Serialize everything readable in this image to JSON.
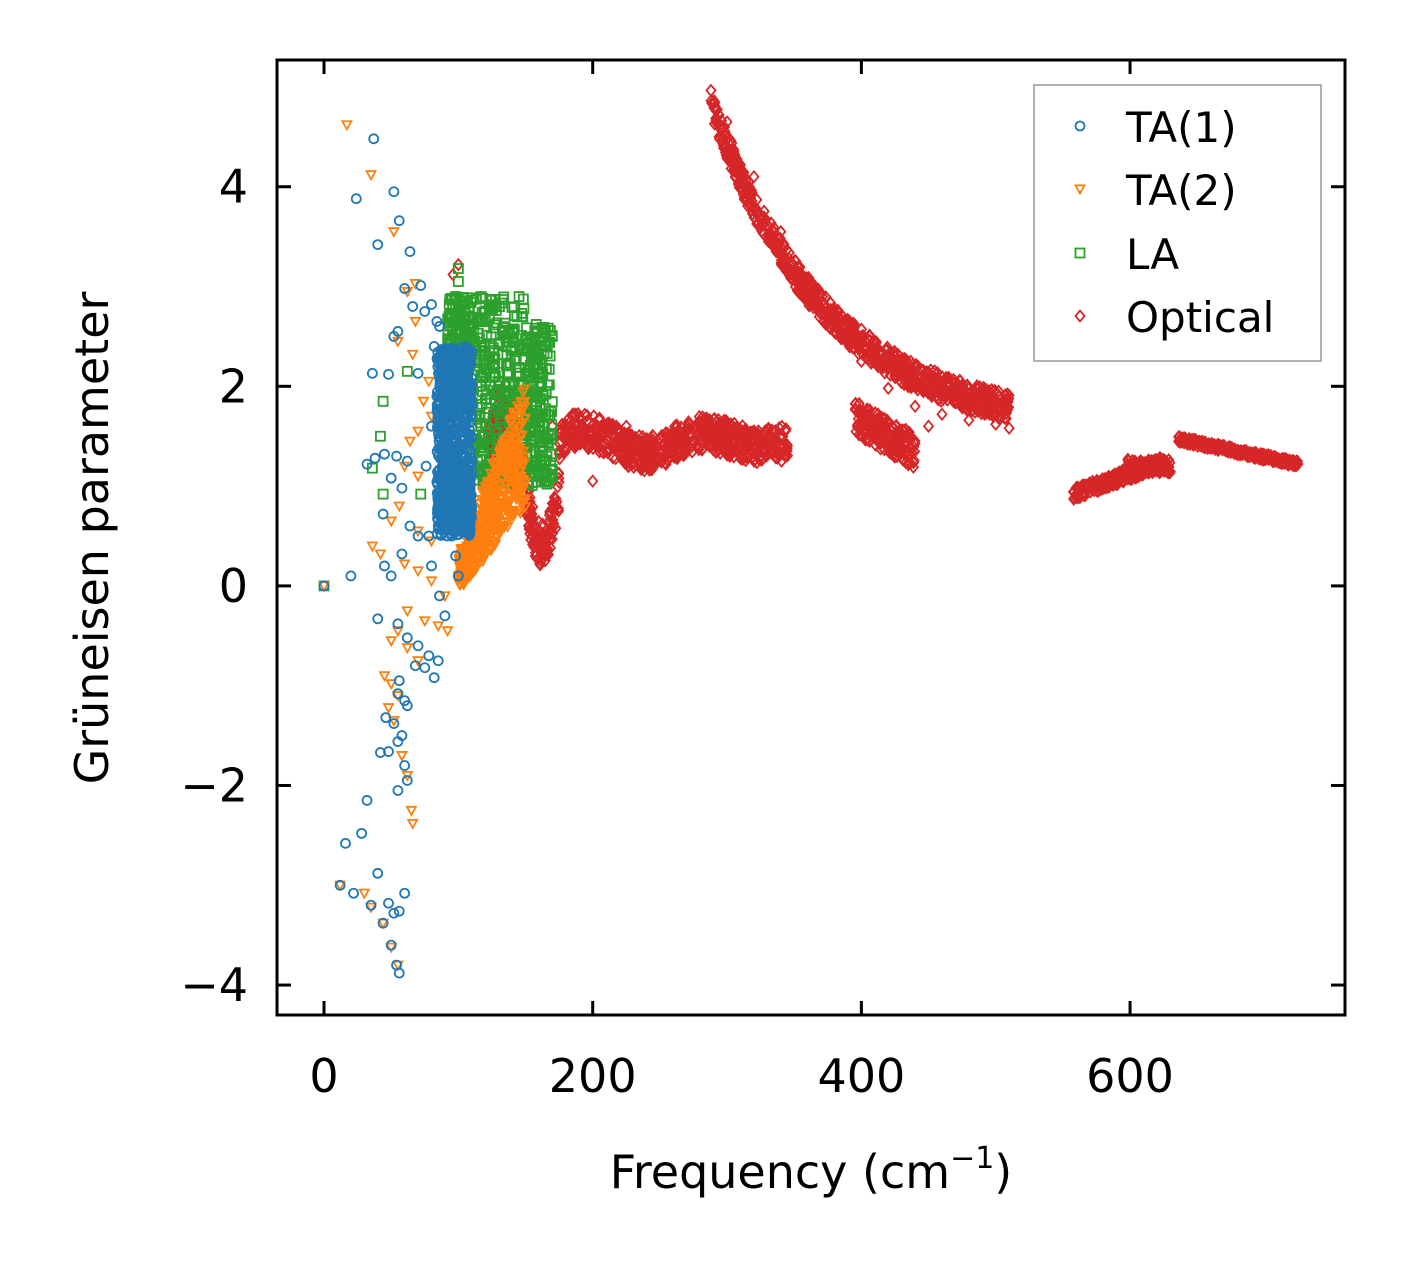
{
  "chart_data": {
    "type": "scatter",
    "title": "",
    "xlabel": "Frequency (cm",
    "xlabel_sup": "−1",
    "xlabel_close": ")",
    "ylabel": "Grüneisen parameter",
    "xlim": [
      -35,
      760
    ],
    "ylim": [
      -4.3,
      5.27
    ],
    "xticks": [
      0,
      200,
      400,
      600
    ],
    "xtick_labels": [
      "0",
      "200",
      "400",
      "600"
    ],
    "yticks": [
      -4,
      -2,
      0,
      2,
      4
    ],
    "ytick_labels": [
      "−4",
      "−2",
      "0",
      "2",
      "4"
    ],
    "grid": false,
    "legend_position": "top-right",
    "series": [
      {
        "name": "TA(1)",
        "marker": "circle",
        "color": "#1f77b4",
        "points": [
          [
            0,
            0
          ],
          [
            20,
            0.1
          ],
          [
            24,
            3.88
          ],
          [
            37,
            4.48
          ],
          [
            40,
            3.42
          ],
          [
            52,
            3.95
          ],
          [
            56,
            3.66
          ],
          [
            64,
            3.35
          ],
          [
            60,
            2.98
          ],
          [
            72,
            3.01
          ],
          [
            66,
            2.8
          ],
          [
            75,
            2.75
          ],
          [
            80,
            2.82
          ],
          [
            84,
            2.65
          ],
          [
            55,
            2.55
          ],
          [
            52,
            2.5
          ],
          [
            36,
            2.13
          ],
          [
            48,
            2.12
          ],
          [
            70,
            2.13
          ],
          [
            45,
            1.32
          ],
          [
            32,
            1.22
          ],
          [
            38,
            1.28
          ],
          [
            54,
            1.3
          ],
          [
            62,
            1.25
          ],
          [
            50,
            1.08
          ],
          [
            58,
            0.98
          ],
          [
            44,
            0.72
          ],
          [
            64,
            0.6
          ],
          [
            70,
            0.5
          ],
          [
            58,
            0.32
          ],
          [
            45,
            0.2
          ],
          [
            50,
            0.1
          ],
          [
            40,
            -0.33
          ],
          [
            55,
            -0.38
          ],
          [
            62,
            -0.52
          ],
          [
            70,
            -0.6
          ],
          [
            78,
            -0.7
          ],
          [
            85,
            -0.75
          ],
          [
            68,
            -0.8
          ],
          [
            75,
            -0.82
          ],
          [
            82,
            -0.92
          ],
          [
            56,
            -0.95
          ],
          [
            55,
            -1.08
          ],
          [
            60,
            -1.15
          ],
          [
            62,
            -1.2
          ],
          [
            46,
            -1.32
          ],
          [
            52,
            -1.38
          ],
          [
            58,
            -1.5
          ],
          [
            55,
            -1.56
          ],
          [
            42,
            -1.67
          ],
          [
            48,
            -1.66
          ],
          [
            60,
            -1.8
          ],
          [
            62,
            -1.95
          ],
          [
            55,
            -2.05
          ],
          [
            32,
            -2.15
          ],
          [
            28,
            -2.48
          ],
          [
            16,
            -2.58
          ],
          [
            40,
            -2.88
          ],
          [
            12,
            -3.0
          ],
          [
            22,
            -3.08
          ],
          [
            35,
            -3.2
          ],
          [
            48,
            -3.18
          ],
          [
            60,
            -3.08
          ],
          [
            52,
            -3.28
          ],
          [
            56,
            -3.26
          ],
          [
            44,
            -3.38
          ],
          [
            50,
            -3.6
          ],
          [
            54,
            -3.8
          ],
          [
            56,
            -3.88
          ],
          [
            88,
            1.0
          ],
          [
            92,
            0.8
          ],
          [
            95,
            0.5
          ],
          [
            98,
            0.3
          ],
          [
            100,
            0.1
          ],
          [
            90,
            -0.3
          ],
          [
            86,
            -0.1
          ],
          [
            80,
            0.2
          ],
          [
            78,
            0.5
          ],
          [
            76,
            1.2
          ],
          [
            80,
            1.6
          ],
          [
            84,
            1.9
          ],
          [
            88,
            2.25
          ],
          [
            82,
            2.4
          ],
          [
            86,
            2.6
          ]
        ],
        "dense_band": {
          "x": [
            84,
            110
          ],
          "y_low": 0.5,
          "y_high": 2.4
        }
      },
      {
        "name": "TA(2)",
        "marker": "triangle-down",
        "color": "#ff7f0e",
        "points": [
          [
            0,
            0
          ],
          [
            17,
            4.62
          ],
          [
            35,
            4.12
          ],
          [
            52,
            3.55
          ],
          [
            68,
            3.03
          ],
          [
            62,
            2.95
          ],
          [
            68,
            2.65
          ],
          [
            55,
            2.45
          ],
          [
            66,
            2.32
          ],
          [
            78,
            2.05
          ],
          [
            74,
            1.85
          ],
          [
            80,
            1.7
          ],
          [
            70,
            1.55
          ],
          [
            64,
            1.45
          ],
          [
            60,
            1.2
          ],
          [
            70,
            1.1
          ],
          [
            56,
            0.8
          ],
          [
            50,
            0.65
          ],
          [
            70,
            0.55
          ],
          [
            80,
            0.45
          ],
          [
            36,
            0.4
          ],
          [
            42,
            0.32
          ],
          [
            60,
            0.22
          ],
          [
            70,
            0.15
          ],
          [
            80,
            0.05
          ],
          [
            90,
            -0.1
          ],
          [
            62,
            -0.25
          ],
          [
            75,
            -0.35
          ],
          [
            85,
            -0.4
          ],
          [
            92,
            -0.45
          ],
          [
            55,
            -0.45
          ],
          [
            50,
            -0.55
          ],
          [
            62,
            -0.62
          ],
          [
            70,
            -0.75
          ],
          [
            45,
            -0.9
          ],
          [
            50,
            -0.98
          ],
          [
            55,
            -1.1
          ],
          [
            48,
            -1.22
          ],
          [
            52,
            -1.35
          ],
          [
            58,
            -1.7
          ],
          [
            62,
            -1.9
          ],
          [
            65,
            -2.25
          ],
          [
            66,
            -2.38
          ],
          [
            30,
            -3.08
          ],
          [
            35,
            -3.22
          ],
          [
            44,
            -3.38
          ],
          [
            50,
            -3.62
          ],
          [
            55,
            -3.8
          ],
          [
            12,
            -3.0
          ]
        ],
        "dense_band": {
          "x_start": 100,
          "x_end": 150,
          "y_start": 0.3,
          "y_end": 2.05
        }
      },
      {
        "name": "LA",
        "marker": "square",
        "color": "#2ca02c",
        "points": [
          [
            0,
            0
          ],
          [
            36,
            1.18
          ],
          [
            42,
            1.5
          ],
          [
            44,
            1.85
          ],
          [
            44,
            0.92
          ],
          [
            62,
            2.15
          ],
          [
            72,
            0.92
          ],
          [
            100,
            3.18
          ],
          [
            100,
            3.05
          ],
          [
            98,
            2.9
          ],
          [
            104,
            2.82
          ],
          [
            96,
            2.55
          ],
          [
            112,
            2.45
          ],
          [
            120,
            2.35
          ],
          [
            130,
            2.42
          ],
          [
            140,
            2.38
          ],
          [
            150,
            2.48
          ],
          [
            158,
            2.62
          ],
          [
            165,
            2.4
          ],
          [
            162,
            2.0
          ],
          [
            164,
            1.6
          ],
          [
            166,
            1.3
          ],
          [
            168,
            1.1
          ],
          [
            166,
            1.02
          ]
        ],
        "dense_band": {
          "x": [
            92,
            170
          ],
          "y_low": 1.0,
          "y_high": 2.9
        }
      },
      {
        "name": "Optical",
        "marker": "diamond",
        "color": "#d62728",
        "points": [
          [
            100,
            3.22
          ],
          [
            96,
            3.12
          ],
          [
            118,
            2.4
          ],
          [
            122,
            2.3
          ],
          [
            132,
            1.9
          ],
          [
            140,
            1.05
          ],
          [
            138,
            1.0
          ],
          [
            150,
            1.15
          ],
          [
            170,
            1.6
          ],
          [
            185,
            1.7
          ],
          [
            200,
            1.05
          ],
          [
            210,
            1.35
          ],
          [
            225,
            1.6
          ],
          [
            245,
            1.5
          ],
          [
            270,
            1.45
          ],
          [
            300,
            1.45
          ],
          [
            330,
            1.42
          ],
          [
            340,
            1.42
          ],
          [
            290,
            4.85
          ],
          [
            300,
            4.65
          ],
          [
            320,
            4.1
          ],
          [
            340,
            3.55
          ],
          [
            360,
            3.0
          ],
          [
            380,
            2.55
          ],
          [
            400,
            2.25
          ],
          [
            420,
            1.98
          ],
          [
            440,
            1.8
          ],
          [
            460,
            1.72
          ],
          [
            480,
            1.66
          ],
          [
            500,
            1.62
          ],
          [
            510,
            1.58
          ],
          [
            410,
            1.55
          ],
          [
            430,
            1.35
          ],
          [
            450,
            1.6
          ],
          [
            560,
            0.92
          ],
          [
            580,
            0.98
          ],
          [
            600,
            1.1
          ],
          [
            620,
            1.22
          ],
          [
            640,
            1.45
          ],
          [
            660,
            1.38
          ],
          [
            680,
            1.32
          ],
          [
            700,
            1.28
          ],
          [
            725,
            1.22
          ]
        ]
      }
    ]
  }
}
